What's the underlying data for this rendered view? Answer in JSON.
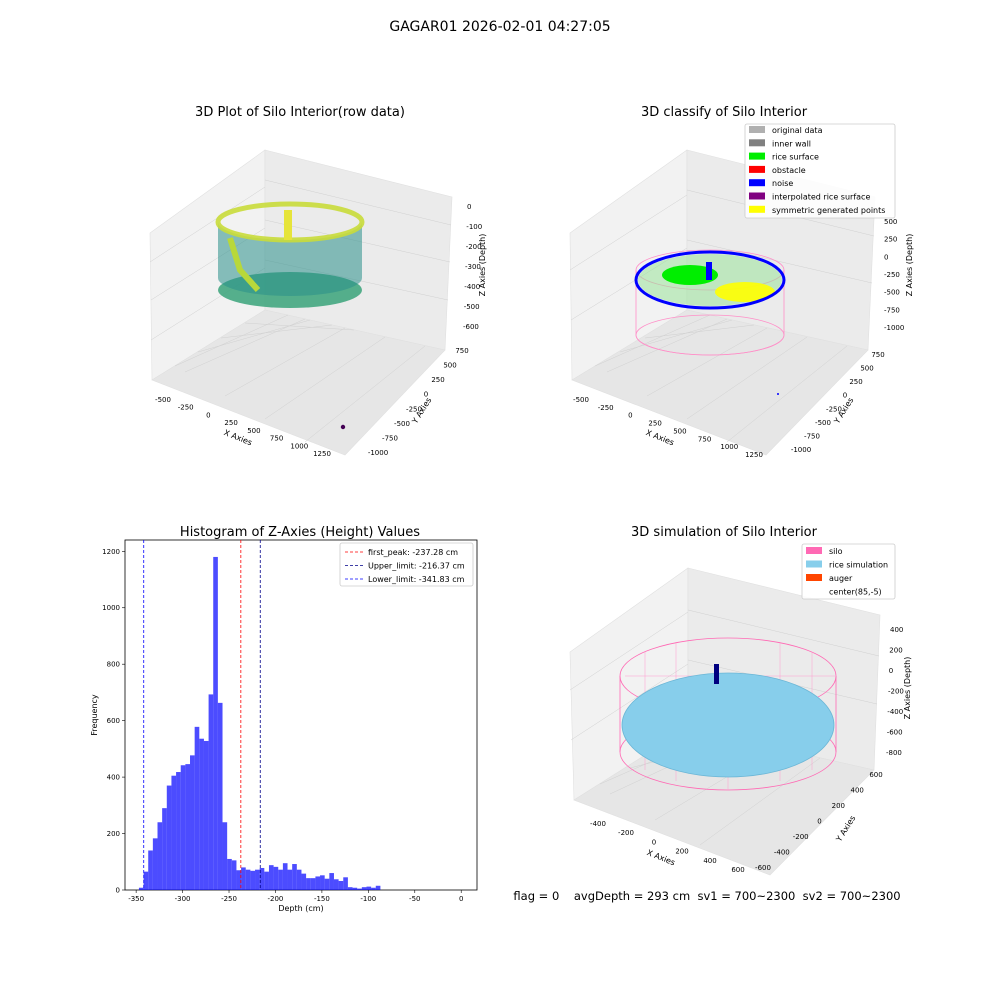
{
  "suptitle": "GAGAR01 2026-02-01 04:27:05",
  "panels": {
    "raw": {
      "title": "3D Plot of Silo Interior(row data)",
      "xlabel": "X Axies",
      "ylabel": "Y Axies",
      "zlabel": "Z Axies (Depth)",
      "xticks": [
        "-500",
        "-250",
        "0",
        "250",
        "500",
        "750",
        "1000",
        "1250"
      ],
      "yticks": [
        "-1000",
        "-750",
        "-500",
        "-250",
        "0",
        "250",
        "500",
        "750"
      ],
      "zticks": [
        "0",
        "-100",
        "-200",
        "-300",
        "-400",
        "-500",
        "-600"
      ]
    },
    "classify": {
      "title": "3D classify of Silo Interior",
      "xlabel": "X Axies",
      "ylabel": "Y Axies",
      "zlabel": "Z Axies (Depth)",
      "xticks": [
        "-500",
        "-250",
        "0",
        "250",
        "500",
        "750",
        "1000",
        "1250"
      ],
      "yticks": [
        "-1000",
        "-750",
        "-500",
        "-250",
        "0",
        "250",
        "500",
        "750"
      ],
      "zticks": [
        "500",
        "250",
        "0",
        "-250",
        "-500",
        "-750",
        "-1000"
      ],
      "legend": [
        {
          "label": "original data",
          "color": "#b0b0b0"
        },
        {
          "label": "inner wall",
          "color": "#808080"
        },
        {
          "label": "rice surface",
          "color": "#00ee00"
        },
        {
          "label": "obstacle",
          "color": "#ff0000"
        },
        {
          "label": "noise",
          "color": "#0000ff"
        },
        {
          "label": "interpolated rice surface",
          "color": "#800080"
        },
        {
          "label": "symmetric generated points",
          "color": "#ffff00"
        }
      ]
    },
    "simulation": {
      "title": "3D simulation of Silo Interior",
      "xlabel": "X Axies",
      "ylabel": "Y Axies",
      "zlabel": "Z Axies (Depth)",
      "xticks": [
        "-400",
        "-200",
        "0",
        "200",
        "400",
        "600"
      ],
      "yticks": [
        "-600",
        "-400",
        "-200",
        "0",
        "200",
        "400",
        "600"
      ],
      "zticks": [
        "400",
        "200",
        "0",
        "-200",
        "-400",
        "-600",
        "-800"
      ],
      "legend": [
        {
          "label": "silo",
          "color": "#ff69b4"
        },
        {
          "label": "rice simulation",
          "color": "#87ceeb"
        },
        {
          "label": "auger",
          "color": "#ff4500"
        },
        {
          "label": "center(85,-5)",
          "color": "#ffffff"
        }
      ],
      "status": "flag = 0    avgDepth = 293 cm  sv1 = 700~2300  sv2 = 700~2300"
    }
  },
  "chart_data": [
    {
      "type": "bar",
      "title": "Histogram of Z-Axies (Height) Values",
      "xlabel": "Depth (cm)",
      "ylabel": "Frequency",
      "xlim": [
        -362,
        17
      ],
      "ylim": [
        0,
        1240
      ],
      "xticks": [
        -350,
        -300,
        -250,
        -200,
        -150,
        -100,
        -50,
        0
      ],
      "yticks": [
        0,
        200,
        400,
        600,
        800,
        1000,
        1200
      ],
      "bin_start": -347,
      "bin_width": 5,
      "bar_color": "#0000ff",
      "values": [
        8,
        65,
        140,
        183,
        240,
        290,
        370,
        405,
        418,
        442,
        446,
        477,
        578,
        536,
        528,
        693,
        1180,
        663,
        240,
        110,
        105,
        70,
        80,
        72,
        68,
        72,
        78,
        65,
        88,
        82,
        72,
        95,
        72,
        92,
        72,
        58,
        42,
        42,
        48,
        52,
        40,
        60,
        38,
        32,
        45,
        10,
        8,
        5,
        10,
        12,
        8,
        15
      ],
      "vlines": [
        {
          "label": "first_peak: -237.28 cm",
          "x": -237.28,
          "color": "#ff0000"
        },
        {
          "label": "Upper_limit: -216.37 cm",
          "x": -216.37,
          "color": "#00008b"
        },
        {
          "label": "Lower_limit: -341.83 cm",
          "x": -341.83,
          "color": "#0000ff"
        }
      ]
    }
  ]
}
